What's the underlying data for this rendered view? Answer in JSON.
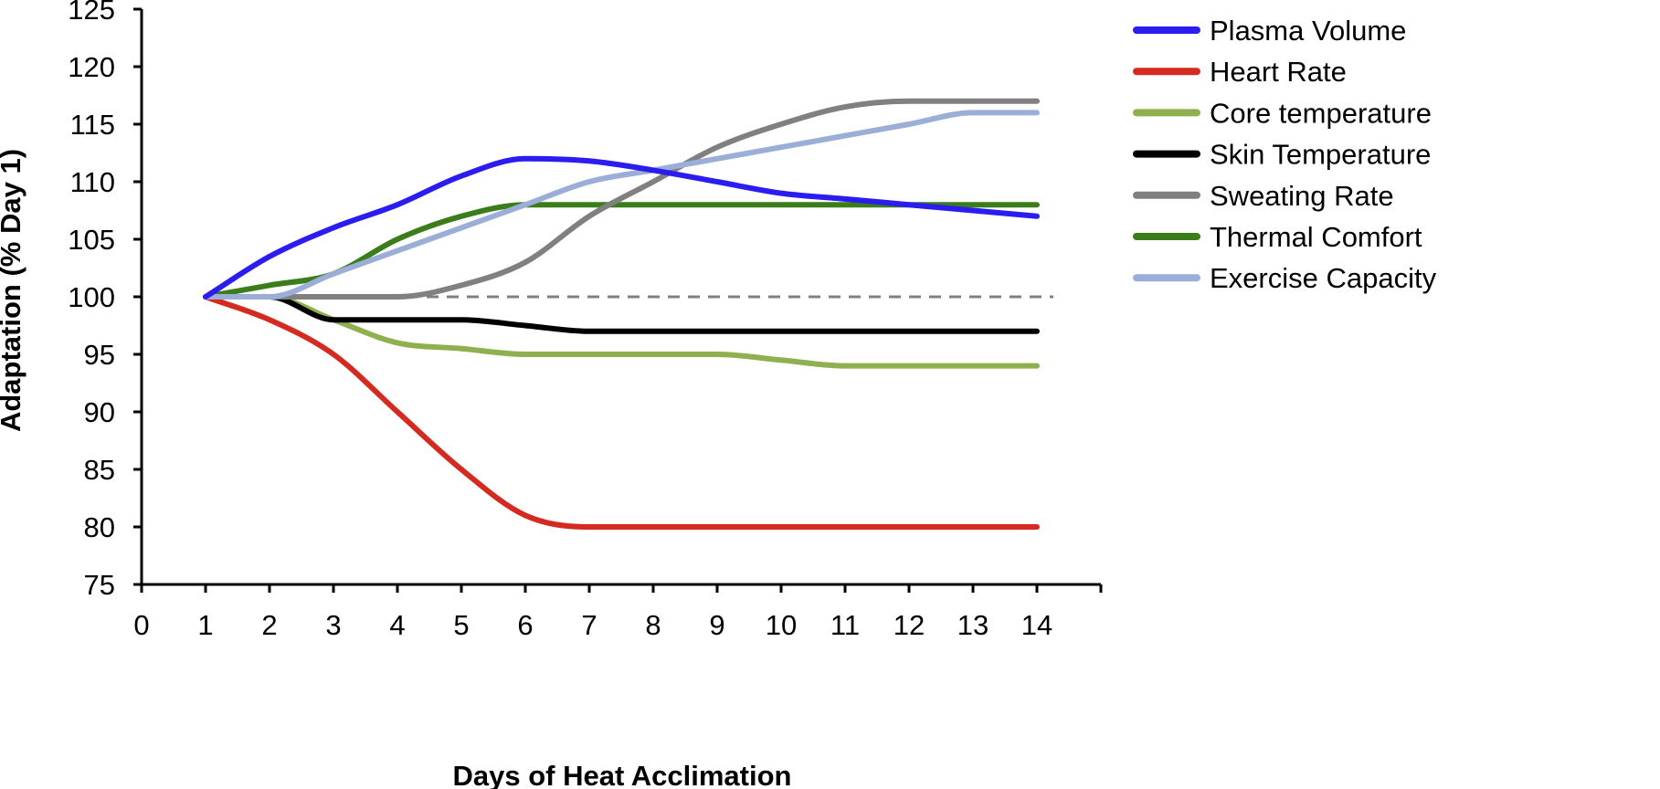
{
  "chart_data": {
    "type": "line",
    "xlabel": "Days of Heat Acclimation",
    "ylabel": "Adaptation (% Day 1)",
    "xlim": [
      0,
      15
    ],
    "ylim": [
      75,
      125
    ],
    "x_ticks": [
      0,
      1,
      2,
      3,
      4,
      5,
      6,
      7,
      8,
      9,
      10,
      11,
      12,
      13,
      14
    ],
    "y_ticks": [
      75,
      80,
      85,
      90,
      95,
      100,
      105,
      110,
      115,
      120,
      125
    ],
    "reference_line": {
      "y": 100,
      "style": "dashed",
      "color": "#808080"
    },
    "legend_position": "right",
    "x": [
      1,
      2,
      3,
      4,
      5,
      6,
      7,
      8,
      9,
      10,
      11,
      12,
      13,
      14
    ],
    "series": [
      {
        "name": "Plasma Volume",
        "color": "#2b1cf0",
        "values": [
          100,
          103.5,
          106,
          108,
          110.5,
          112,
          111.8,
          111,
          110,
          109,
          108.5,
          108,
          107.5,
          107
        ]
      },
      {
        "name": "Heart Rate",
        "color": "#d42a20",
        "values": [
          100,
          98,
          95,
          90,
          85,
          81,
          80,
          80,
          80,
          80,
          80,
          80,
          80,
          80
        ]
      },
      {
        "name": "Core temperature",
        "color": "#8fb04f",
        "values": [
          100,
          100,
          98,
          96,
          95.5,
          95,
          95,
          95,
          95,
          94.5,
          94,
          94,
          94,
          94
        ]
      },
      {
        "name": "Skin Temperature",
        "color": "#000000",
        "values": [
          100,
          100,
          98,
          98,
          98,
          97.5,
          97,
          97,
          97,
          97,
          97,
          97,
          97,
          97
        ]
      },
      {
        "name": "Sweating Rate",
        "color": "#808080",
        "values": [
          100,
          100,
          100,
          100,
          101,
          103,
          107,
          110,
          113,
          115,
          116.5,
          117,
          117,
          117
        ]
      },
      {
        "name": "Thermal Comfort",
        "color": "#3a7d1a",
        "values": [
          100,
          101,
          102,
          105,
          107,
          108,
          108,
          108,
          108,
          108,
          108,
          108,
          108,
          108
        ]
      },
      {
        "name": "Exercise Capacity",
        "color": "#9aaed8",
        "values": [
          100,
          100,
          102,
          104,
          106,
          108,
          110,
          111,
          112,
          113,
          114,
          115,
          116,
          116
        ]
      }
    ]
  }
}
